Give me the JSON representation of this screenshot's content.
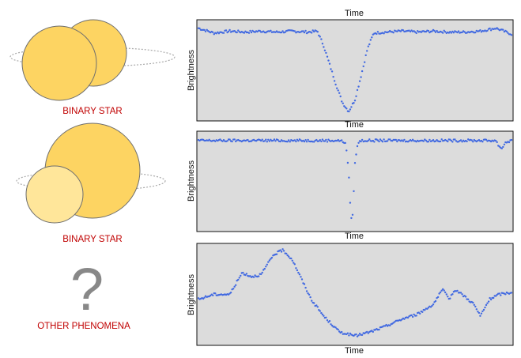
{
  "colors": {
    "star_primary": "#fdd462",
    "star_secondary": "#ffe69a",
    "star_outline": "#6e6e6e",
    "orbit": "#aaaaaa",
    "caption": "#c00000",
    "question_mark": "#888888",
    "panel_background": "#dcdcdc",
    "data_points": "#4169e1"
  },
  "rows": [
    {
      "caption": "BINARY STAR",
      "icon": "binary-star-icon"
    },
    {
      "caption": "BINARY STAR",
      "icon": "binary-star-icon"
    },
    {
      "caption": "OTHER PHENOMENA",
      "icon": "question-mark-icon",
      "symbol": "?"
    }
  ],
  "chart_data": [
    {
      "type": "scatter",
      "xlabel": "Time",
      "ylabel": "Brightness",
      "grid": false,
      "description_of_shape": "flat baseline with one wide V-shaped dip",
      "x": [
        0,
        0.05,
        0.1,
        0.15,
        0.2,
        0.25,
        0.3,
        0.35,
        0.38,
        0.4,
        0.42,
        0.44,
        0.46,
        0.48,
        0.5,
        0.52,
        0.54,
        0.56,
        0.6,
        0.65,
        0.7,
        0.75,
        0.8,
        0.85,
        0.9,
        0.95,
        1.0
      ],
      "y": [
        0.93,
        0.88,
        0.9,
        0.89,
        0.9,
        0.89,
        0.9,
        0.89,
        0.9,
        0.75,
        0.55,
        0.35,
        0.17,
        0.08,
        0.2,
        0.45,
        0.72,
        0.88,
        0.89,
        0.9,
        0.89,
        0.9,
        0.89,
        0.89,
        0.9,
        0.93,
        0.87
      ]
    },
    {
      "type": "scatter",
      "xlabel": "Time",
      "ylabel": "Brightness",
      "grid": false,
      "x": [
        0,
        0.1,
        0.2,
        0.3,
        0.4,
        0.45,
        0.47,
        0.48,
        0.485,
        0.49,
        0.495,
        0.5,
        0.51,
        0.52,
        0.6,
        0.7,
        0.8,
        0.9,
        0.95,
        0.96,
        0.97,
        0.98,
        1.0
      ],
      "y": [
        0.92,
        0.92,
        0.92,
        0.92,
        0.92,
        0.92,
        0.9,
        0.6,
        0.25,
        0.05,
        0.3,
        0.7,
        0.9,
        0.92,
        0.92,
        0.92,
        0.92,
        0.92,
        0.92,
        0.86,
        0.84,
        0.9,
        0.92
      ]
    },
    {
      "type": "scatter",
      "xlabel": "Time",
      "ylabel": "Brightness",
      "grid": false,
      "x": [
        0,
        0.05,
        0.1,
        0.14,
        0.17,
        0.2,
        0.24,
        0.27,
        0.3,
        0.33,
        0.36,
        0.4,
        0.45,
        0.5,
        0.55,
        0.6,
        0.65,
        0.7,
        0.75,
        0.78,
        0.8,
        0.82,
        0.85,
        0.88,
        0.9,
        0.93,
        0.96,
        1.0
      ],
      "y": [
        0.45,
        0.5,
        0.5,
        0.72,
        0.68,
        0.7,
        0.9,
        0.95,
        0.85,
        0.65,
        0.45,
        0.28,
        0.12,
        0.08,
        0.12,
        0.18,
        0.25,
        0.3,
        0.4,
        0.55,
        0.45,
        0.55,
        0.48,
        0.4,
        0.28,
        0.45,
        0.5,
        0.52
      ]
    }
  ]
}
